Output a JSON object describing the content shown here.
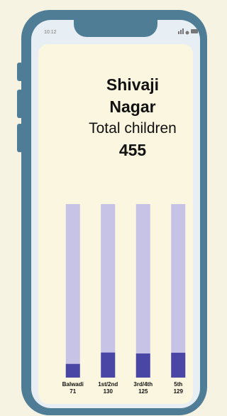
{
  "status_time": "10:12",
  "chart_data": {
    "type": "bar",
    "title": "Shivaji Nagar",
    "subtitle": "Total children",
    "total": 455,
    "categories": [
      "Balwadi",
      "1st/2nd",
      "3rd/4th",
      "5th"
    ],
    "values": [
      71,
      130,
      125,
      129
    ],
    "color": "#4a46a6",
    "track_color": "#c6c3e7",
    "ylim": [
      0,
      900
    ]
  }
}
